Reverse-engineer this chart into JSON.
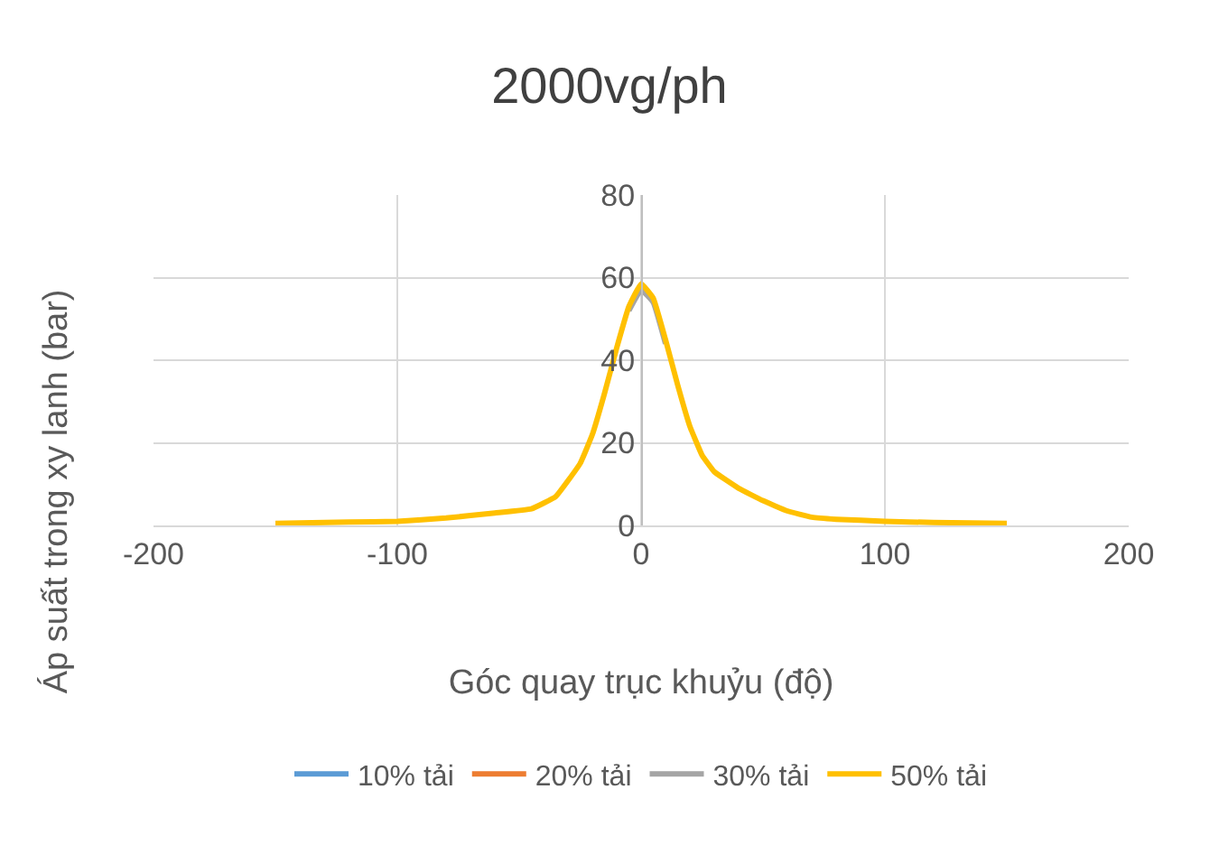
{
  "chart_data": {
    "type": "line",
    "title": "2000vg/ph",
    "xlabel": "Góc quay trục khuỷu (độ)",
    "ylabel": "Áp suất trong xy lanh (bar)",
    "x": [
      -150,
      -120,
      -100,
      -80,
      -60,
      -45,
      -35,
      -25,
      -20,
      -15,
      -10,
      -5,
      0,
      5,
      10,
      15,
      20,
      25,
      30,
      40,
      50,
      60,
      70,
      80,
      100,
      120,
      150
    ],
    "series": [
      {
        "name": "10% tải",
        "color": "#5b9bd5",
        "values": [
          null,
          null,
          null,
          null,
          null,
          null,
          null,
          null,
          null,
          null,
          null,
          null,
          null,
          null,
          null,
          null,
          null,
          null,
          null,
          null,
          null,
          null,
          null,
          null,
          null,
          null,
          null
        ]
      },
      {
        "name": "20% tải",
        "color": "#ed7d31",
        "values": [
          null,
          null,
          null,
          null,
          null,
          null,
          null,
          null,
          null,
          null,
          null,
          null,
          null,
          null,
          null,
          null,
          null,
          null,
          null,
          null,
          null,
          null,
          null,
          null,
          null,
          null,
          null
        ]
      },
      {
        "name": "30% tải",
        "color": "#a5a5a5",
        "values": [
          null,
          null,
          null,
          null,
          null,
          null,
          null,
          null,
          null,
          null,
          null,
          52,
          57,
          54,
          44,
          null,
          null,
          null,
          null,
          null,
          null,
          null,
          null,
          null,
          null,
          null,
          null
        ]
      },
      {
        "name": "50% tải",
        "color": "#ffc000",
        "values": [
          0.5,
          0.8,
          1,
          1.8,
          3,
          4,
          7,
          15,
          22,
          32,
          43,
          53,
          58.5,
          55,
          45,
          34,
          24,
          17,
          13,
          9,
          6,
          3.5,
          2,
          1.5,
          1,
          0.7,
          0.5
        ]
      }
    ],
    "xlim": [
      -200,
      200
    ],
    "xticks": [
      -200,
      -100,
      0,
      100,
      200
    ],
    "ylim": [
      0,
      80
    ],
    "yticks": [
      0,
      20,
      40,
      60,
      80
    ],
    "grid": true,
    "legend": "bottom",
    "line_style": "solid",
    "marker": "none"
  }
}
